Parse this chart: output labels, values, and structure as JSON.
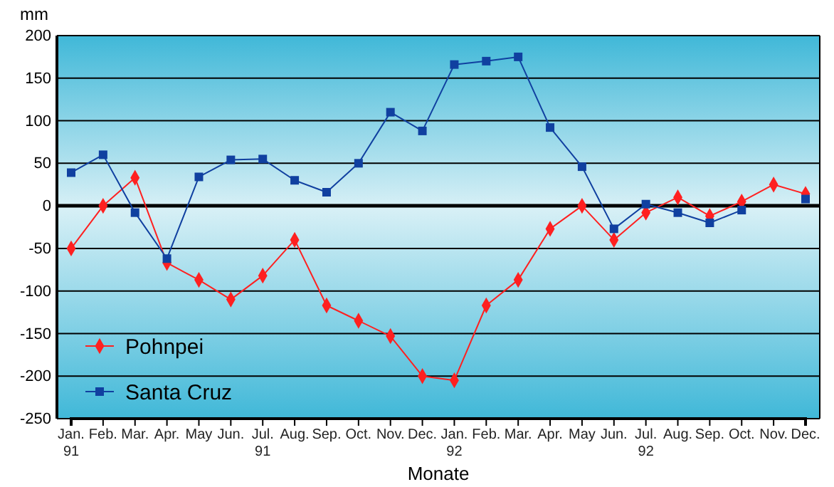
{
  "chart_data": {
    "type": "line",
    "ylabel": "mm",
    "xlabel": "Monate",
    "categories": [
      "Jan.\n91",
      "Feb.",
      "Mar.",
      "Apr.",
      "May",
      "Jun.",
      "Jul.\n91",
      "Aug.",
      "Sep.",
      "Oct.",
      "Nov.",
      "Dec.",
      "Jan.\n92",
      "Feb.",
      "Mar.",
      "Apr.",
      "May",
      "Jun.",
      "Jul.\n92",
      "Aug.",
      "Sep.",
      "Oct.",
      "Nov.",
      "Dec."
    ],
    "series": [
      {
        "name": "Pohnpei",
        "color": "#ff2020",
        "marker": "diamond",
        "values": [
          -50,
          0,
          33,
          -67,
          -87,
          -110,
          -82,
          -40,
          -117,
          -135,
          -153,
          -200,
          -205,
          -117,
          -87,
          -27,
          0,
          -40,
          -8,
          10,
          -12,
          5,
          25,
          14
        ]
      },
      {
        "name": "Santa Cruz",
        "color": "#1040a0",
        "marker": "square",
        "values": [
          39,
          60,
          -8,
          -62,
          34,
          54,
          55,
          30,
          16,
          50,
          110,
          88,
          166,
          170,
          175,
          92,
          46,
          -27,
          2,
          -8,
          -20,
          -5,
          null,
          8
        ]
      }
    ],
    "ylim": [
      -250,
      200
    ],
    "yticks": [
      -250,
      -200,
      -150,
      -100,
      -50,
      0,
      50,
      100,
      150,
      200
    ],
    "grid": "y",
    "ref_lines": [
      {
        "axis": "y",
        "value": 0,
        "color": "#000000"
      }
    ],
    "legend": "bottom left"
  }
}
